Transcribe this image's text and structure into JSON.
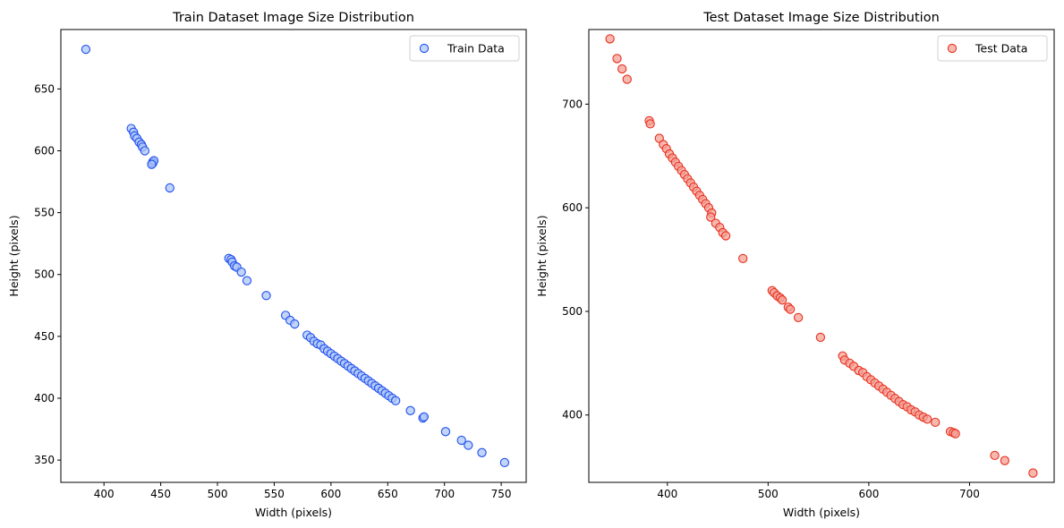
{
  "figure": {
    "background": "#ffffff"
  },
  "chart_data": [
    {
      "type": "scatter",
      "title": "Train Dataset Image Size Distribution",
      "xlabel": "Width (pixels)",
      "ylabel": "Height (pixels)",
      "xlim": [
        362,
        772
      ],
      "ylim": [
        332,
        698
      ],
      "xticks": [
        400,
        450,
        500,
        550,
        600,
        650,
        700,
        750
      ],
      "yticks": [
        350,
        400,
        450,
        500,
        550,
        600,
        650
      ],
      "grid": false,
      "legend": "top-right",
      "series": [
        {
          "name": "Train Data",
          "face_color": "#aec7f5",
          "edge_color": "#1f4ef0",
          "points": [
            [
              384,
              682
            ],
            [
              424,
              618
            ],
            [
              426,
              615
            ],
            [
              427,
              612
            ],
            [
              429,
              610
            ],
            [
              431,
              607
            ],
            [
              433,
              605
            ],
            [
              434,
              603
            ],
            [
              436,
              600
            ],
            [
              443,
              591
            ],
            [
              443,
              590
            ],
            [
              444,
              592
            ],
            [
              442,
              589
            ],
            [
              458,
              570
            ],
            [
              510,
              513
            ],
            [
              512,
              512
            ],
            [
              513,
              510
            ],
            [
              515,
              507
            ],
            [
              517,
              506
            ],
            [
              521,
              502
            ],
            [
              526,
              495
            ],
            [
              543,
              483
            ],
            [
              560,
              467
            ],
            [
              564,
              463
            ],
            [
              568,
              460
            ],
            [
              579,
              451
            ],
            [
              582,
              449
            ],
            [
              585,
              446
            ],
            [
              588,
              444
            ],
            [
              591,
              443
            ],
            [
              594,
              440
            ],
            [
              597,
              438
            ],
            [
              600,
              436
            ],
            [
              603,
              434
            ],
            [
              606,
              432
            ],
            [
              609,
              430
            ],
            [
              612,
              428
            ],
            [
              615,
              426
            ],
            [
              618,
              424
            ],
            [
              621,
              422
            ],
            [
              624,
              420
            ],
            [
              627,
              418
            ],
            [
              630,
              416
            ],
            [
              633,
              414
            ],
            [
              636,
              412
            ],
            [
              639,
              410
            ],
            [
              642,
              408
            ],
            [
              645,
              406
            ],
            [
              648,
              404
            ],
            [
              651,
              402
            ],
            [
              654,
              400
            ],
            [
              657,
              398
            ],
            [
              670,
              390
            ],
            [
              681,
              384
            ],
            [
              682,
              385
            ],
            [
              701,
              373
            ],
            [
              715,
              366
            ],
            [
              721,
              362
            ],
            [
              733,
              356
            ],
            [
              753,
              348
            ]
          ]
        }
      ]
    },
    {
      "type": "scatter",
      "title": "Test Dataset Image Size Distribution",
      "xlabel": "Width (pixels)",
      "ylabel": "Height (pixels)",
      "xlim": [
        322,
        784
      ],
      "ylim": [
        335,
        772
      ],
      "xticks": [
        400,
        500,
        600,
        700
      ],
      "yticks": [
        400,
        500,
        600,
        700
      ],
      "grid": false,
      "legend": "top-right",
      "series": [
        {
          "name": "Test Data",
          "face_color": "#f4a096",
          "edge_color": "#e8301e",
          "points": [
            [
              343,
              763
            ],
            [
              350,
              744
            ],
            [
              355,
              734
            ],
            [
              360,
              724
            ],
            [
              382,
              684
            ],
            [
              383,
              681
            ],
            [
              392,
              667
            ],
            [
              396,
              661
            ],
            [
              399,
              657
            ],
            [
              402,
              652
            ],
            [
              405,
              648
            ],
            [
              408,
              644
            ],
            [
              411,
              640
            ],
            [
              414,
              636
            ],
            [
              417,
              632
            ],
            [
              420,
              628
            ],
            [
              423,
              624
            ],
            [
              426,
              620
            ],
            [
              429,
              616
            ],
            [
              432,
              612
            ],
            [
              435,
              608
            ],
            [
              438,
              604
            ],
            [
              441,
              600
            ],
            [
              444,
              595
            ],
            [
              443,
              591
            ],
            [
              448,
              585
            ],
            [
              452,
              581
            ],
            [
              455,
              576
            ],
            [
              458,
              573
            ],
            [
              475,
              551
            ],
            [
              504,
              520
            ],
            [
              506,
              518
            ],
            [
              509,
              515
            ],
            [
              512,
              513
            ],
            [
              514,
              511
            ],
            [
              520,
              504
            ],
            [
              522,
              502
            ],
            [
              530,
              494
            ],
            [
              552,
              475
            ],
            [
              574,
              457
            ],
            [
              576,
              453
            ],
            [
              581,
              450
            ],
            [
              585,
              447
            ],
            [
              590,
              443
            ],
            [
              594,
              441
            ],
            [
              598,
              437
            ],
            [
              602,
              434
            ],
            [
              606,
              431
            ],
            [
              610,
              428
            ],
            [
              614,
              425
            ],
            [
              618,
              422
            ],
            [
              622,
              419
            ],
            [
              626,
              416
            ],
            [
              630,
              413
            ],
            [
              634,
              410
            ],
            [
              638,
              408
            ],
            [
              642,
              405
            ],
            [
              646,
              403
            ],
            [
              650,
              400
            ],
            [
              654,
              398
            ],
            [
              658,
              396
            ],
            [
              666,
              393
            ],
            [
              681,
              384
            ],
            [
              684,
              383
            ],
            [
              686,
              382
            ],
            [
              725,
              361
            ],
            [
              735,
              356
            ],
            [
              763,
              344
            ]
          ]
        }
      ]
    }
  ]
}
